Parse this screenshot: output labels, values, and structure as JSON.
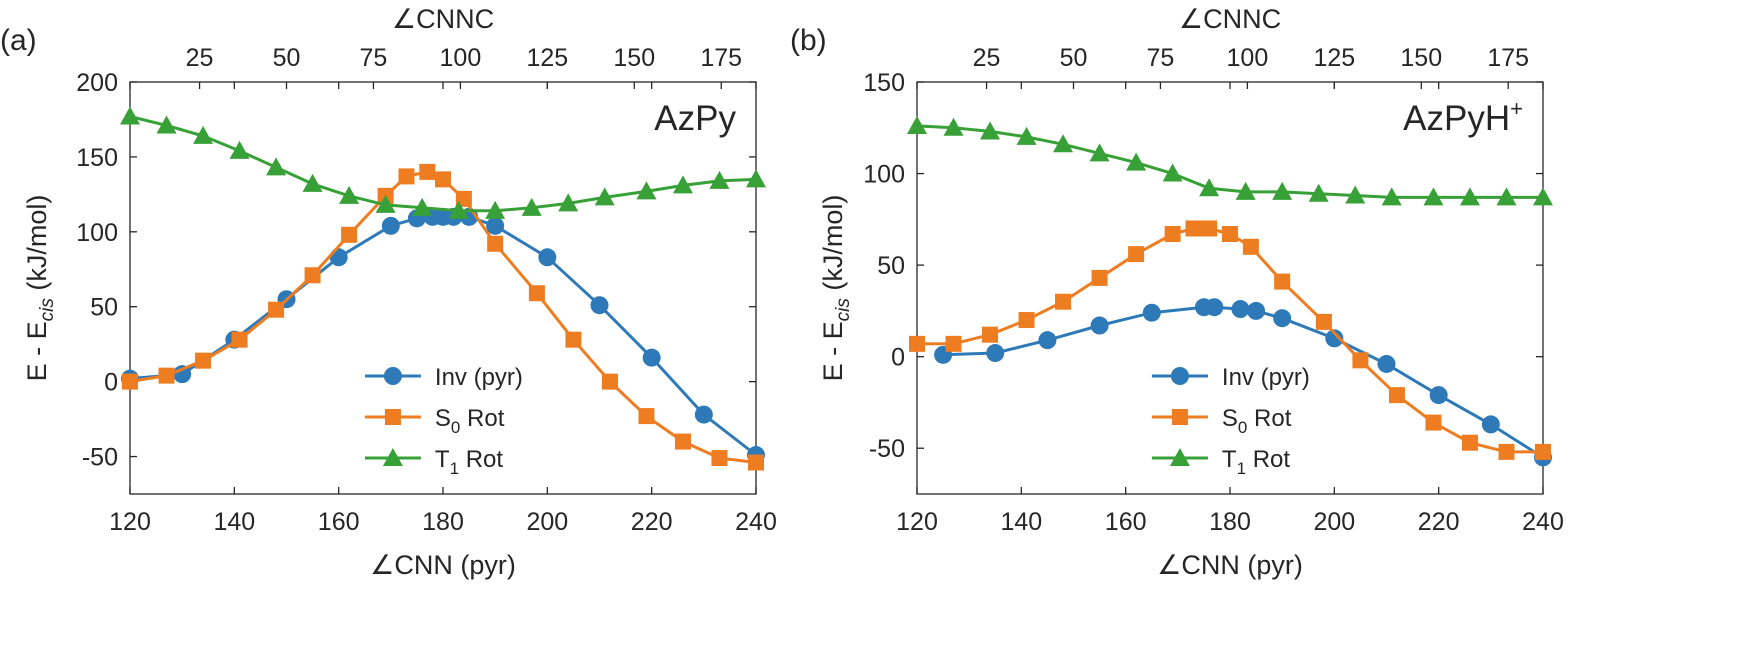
{
  "chart_data": [
    {
      "type": "line",
      "panel_label": "(a)",
      "title": "AzPy",
      "title_sup": "",
      "xlabel": "∠CNN (pyr)",
      "x2label": "∠CNNC",
      "ylabel_main": "E - E",
      "ylabel_sub": "cis",
      "ylabel_unit": "(kJ/mol)",
      "xlim": [
        120,
        240
      ],
      "ylim": [
        -75,
        200
      ],
      "x2lim": [
        5,
        185
      ],
      "xticks": [
        120,
        140,
        160,
        180,
        200,
        220,
        240
      ],
      "yticks": [
        -50,
        0,
        50,
        100,
        150,
        200
      ],
      "x2ticks": [
        25,
        50,
        75,
        100,
        125,
        150,
        175
      ],
      "grid": false,
      "legend_position": "lower-center",
      "series": [
        {
          "name": "Inv (pyr)",
          "name_main": "Inv (pyr)",
          "name_sub": "",
          "name_tail": "",
          "marker": "circle",
          "color": "#2e7ab8",
          "x": [
            120,
            130,
            140,
            150,
            160,
            170,
            175,
            178,
            180,
            182,
            185,
            190,
            200,
            210,
            220,
            230,
            240
          ],
          "y": [
            2,
            5,
            28,
            55,
            83,
            104,
            109,
            110,
            110,
            110,
            110,
            104,
            83,
            51,
            16,
            -22,
            -49
          ]
        },
        {
          "name": "S0 Rot",
          "name_main": "S",
          "name_sub": "0",
          "name_tail": " Rot",
          "marker": "square",
          "color": "#ee7d21",
          "x": [
            120,
            127,
            134,
            141,
            148,
            155,
            162,
            169,
            173,
            177,
            180,
            184,
            190,
            198,
            205,
            212,
            219,
            226,
            233,
            240
          ],
          "y": [
            0,
            4,
            14,
            28,
            48,
            71,
            98,
            124,
            137,
            140,
            135,
            122,
            92,
            59,
            28,
            0,
            -23,
            -40,
            -51,
            -54
          ]
        },
        {
          "name": "T1 Rot",
          "name_main": "T",
          "name_sub": "1",
          "name_tail": " Rot",
          "marker": "triangle",
          "color": "#37a036",
          "x": [
            120,
            127,
            134,
            141,
            148,
            155,
            162,
            169,
            176,
            183,
            190,
            197,
            204,
            211,
            219,
            226,
            233,
            240
          ],
          "y": [
            177,
            171,
            164,
            154,
            143,
            132,
            124,
            118,
            116,
            114,
            114,
            116,
            119,
            123,
            127,
            131,
            134,
            135
          ]
        }
      ]
    },
    {
      "type": "line",
      "panel_label": "(b)",
      "title": "AzPyH",
      "title_sup": "+",
      "xlabel": "∠CNN (pyr)",
      "x2label": "∠CNNC",
      "ylabel_main": "E - E",
      "ylabel_sub": "cis",
      "ylabel_unit": "(kJ/mol)",
      "xlim": [
        120,
        240
      ],
      "ylim": [
        -75,
        150
      ],
      "x2lim": [
        5,
        185
      ],
      "xticks": [
        120,
        140,
        160,
        180,
        200,
        220,
        240
      ],
      "yticks": [
        -50,
        0,
        50,
        100,
        150
      ],
      "x2ticks": [
        25,
        50,
        75,
        100,
        125,
        150,
        175
      ],
      "grid": false,
      "legend_position": "lower-center",
      "series": [
        {
          "name": "Inv (pyr)",
          "name_main": "Inv (pyr)",
          "name_sub": "",
          "name_tail": "",
          "marker": "circle",
          "color": "#2e7ab8",
          "x": [
            125,
            135,
            145,
            155,
            165,
            175,
            177,
            182,
            185,
            190,
            200,
            210,
            220,
            230,
            240
          ],
          "y": [
            1,
            2,
            9,
            17,
            24,
            27,
            27,
            26,
            25,
            21,
            10,
            -4,
            -21,
            -37,
            -55
          ]
        },
        {
          "name": "S0 Rot",
          "name_main": "S",
          "name_sub": "0",
          "name_tail": " Rot",
          "marker": "square",
          "color": "#ee7d21",
          "x": [
            120,
            127,
            134,
            141,
            148,
            155,
            162,
            169,
            173,
            176,
            180,
            184,
            190,
            198,
            205,
            212,
            219,
            226,
            233,
            240
          ],
          "y": [
            7,
            7,
            12,
            20,
            30,
            43,
            56,
            67,
            70,
            70,
            67,
            60,
            41,
            19,
            -2,
            -21,
            -36,
            -47,
            -52,
            -52
          ]
        },
        {
          "name": "T1 Rot",
          "name_main": "T",
          "name_sub": "1",
          "name_tail": " Rot",
          "marker": "triangle",
          "color": "#37a036",
          "x": [
            120,
            127,
            134,
            141,
            148,
            155,
            162,
            169,
            176,
            183,
            190,
            197,
            204,
            211,
            219,
            226,
            233,
            240
          ],
          "y": [
            126,
            125,
            123,
            120,
            116,
            111,
            106,
            100,
            92,
            90,
            90,
            89,
            88,
            87,
            87,
            87,
            87,
            87
          ]
        }
      ]
    }
  ]
}
